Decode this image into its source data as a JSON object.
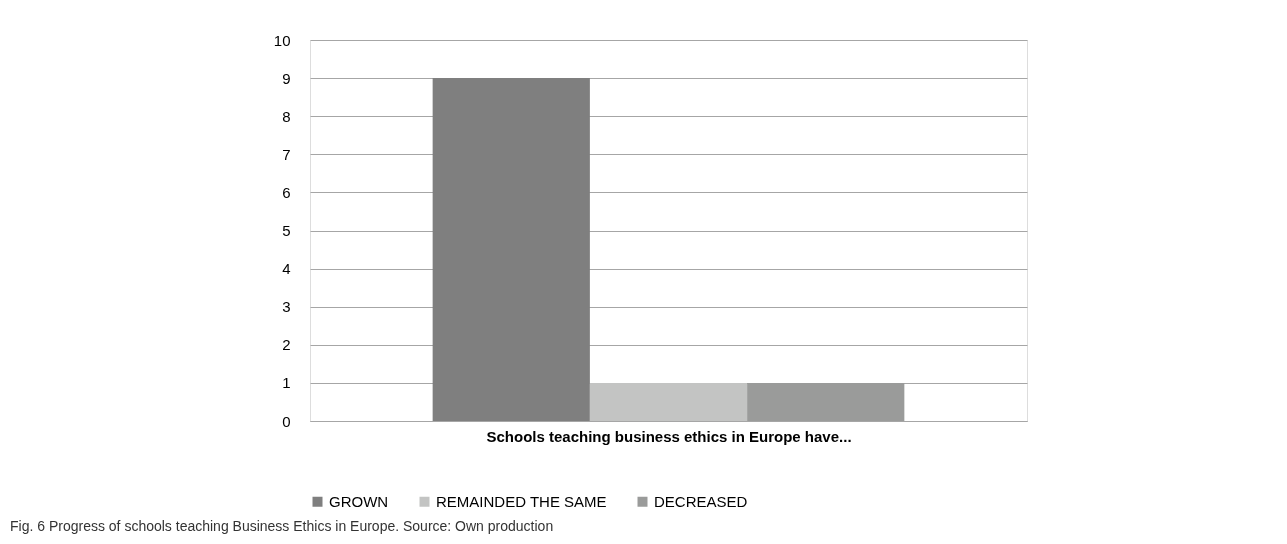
{
  "chart_data": {
    "type": "bar",
    "categories": [
      null
    ],
    "xlabel": "Schools teaching business ethics in Europe have...",
    "series": [
      {
        "name": "GROWN",
        "color": "#7f7f7f",
        "values": [
          9
        ]
      },
      {
        "name": "REMAINDED THE SAME",
        "color": "#c3c4c3",
        "values": [
          1
        ]
      },
      {
        "name": "DECREASED",
        "color": "#9a9b9a",
        "values": [
          1
        ]
      }
    ],
    "ylim": [
      0,
      10
    ],
    "yticks": [
      0,
      1,
      2,
      3,
      4,
      5,
      6,
      7,
      8,
      9,
      10
    ],
    "grid": "y",
    "legend": "bottom",
    "annotations": [
      "Fig. 6 Progress of schools teaching Business Ethics in Europe. Source: Own production"
    ]
  }
}
